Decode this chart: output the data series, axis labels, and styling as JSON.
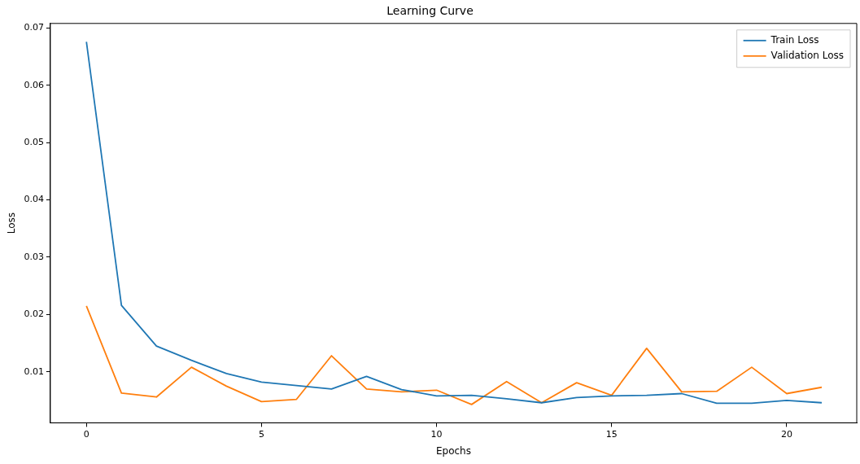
{
  "chart_data": {
    "type": "line",
    "title": "Learning Curve",
    "xlabel": "Epochs",
    "ylabel": "Loss",
    "x": [
      0,
      1,
      2,
      3,
      4,
      5,
      6,
      7,
      8,
      9,
      10,
      11,
      12,
      13,
      14,
      15,
      16,
      17,
      18,
      19,
      20,
      21
    ],
    "series": [
      {
        "name": "Train Loss",
        "color": "#1f77b4",
        "values": [
          0.0676,
          0.0216,
          0.0145,
          0.012,
          0.0097,
          0.0082,
          0.0076,
          0.007,
          0.0092,
          0.0069,
          0.0058,
          0.0059,
          0.0053,
          0.0046,
          0.0055,
          0.0058,
          0.0059,
          0.0062,
          0.0045,
          0.0045,
          0.005,
          0.0046
        ]
      },
      {
        "name": "Validation Loss",
        "color": "#ff7f0e",
        "values": [
          0.0215,
          0.0063,
          0.0056,
          0.0108,
          0.0075,
          0.0048,
          0.0052,
          0.0128,
          0.007,
          0.0065,
          0.0068,
          0.0043,
          0.0083,
          0.0046,
          0.0081,
          0.0059,
          0.0141,
          0.0065,
          0.0066,
          0.0108,
          0.0062,
          0.0073
        ]
      }
    ],
    "xlim": [
      -1.03,
      22.0
    ],
    "xticks": [
      0,
      5,
      10,
      15,
      20
    ],
    "ylim": [
      0.0011,
      0.0708
    ],
    "yticks": [
      0.01,
      0.02,
      0.03,
      0.04,
      0.05,
      0.06,
      0.07
    ],
    "grid": false,
    "legend": "top right",
    "marker": "none",
    "line_style": "solid"
  }
}
